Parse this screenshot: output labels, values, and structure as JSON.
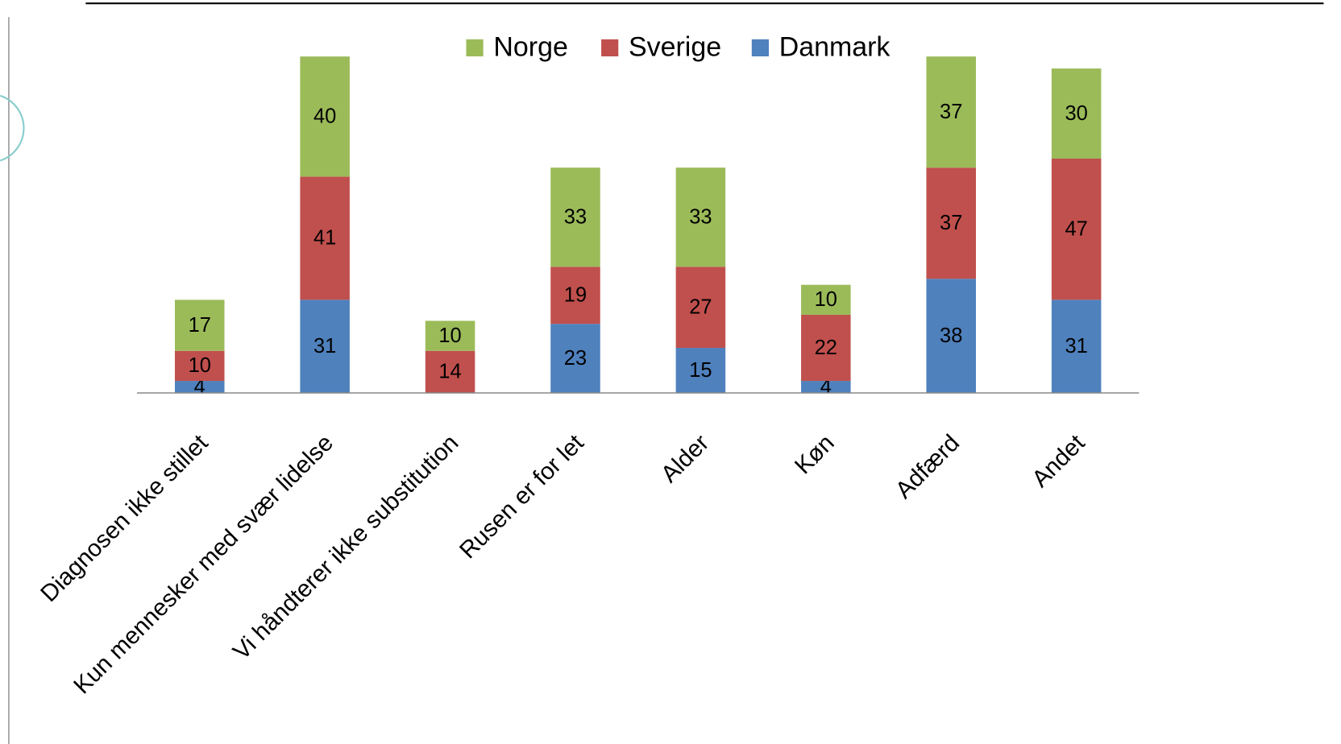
{
  "chart_data": {
    "type": "stacked_bar",
    "categories": [
      "Diagnosen ikke stillet",
      "Kun mennesker med svær lidelse",
      "Vi håndterer ikke substitution",
      "Rusen er for let",
      "Alder",
      "Køn",
      "Adfærd",
      "Andet"
    ],
    "series": [
      {
        "name": "Danmark",
        "color": "#4f81bd",
        "values": [
          4,
          31,
          null,
          23,
          15,
          4,
          38,
          31
        ]
      },
      {
        "name": "Sverige",
        "color": "#c0504d",
        "values": [
          10,
          41,
          14,
          19,
          27,
          22,
          37,
          47
        ]
      },
      {
        "name": "Norge",
        "color": "#9bbb59",
        "values": [
          17,
          40,
          10,
          33,
          33,
          10,
          37,
          30
        ]
      }
    ],
    "ylim": [
      0,
      120
    ]
  }
}
